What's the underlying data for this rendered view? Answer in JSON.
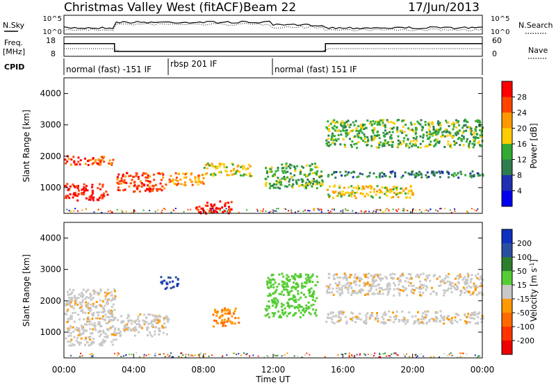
{
  "header": {
    "station": "Christmas Valley West (fitACF)",
    "beam": "Beam 22",
    "date": "17/Jun/2013"
  },
  "side_labels": {
    "nsky": "N.Sky",
    "nsearch": "N.Search",
    "freq": "Freq.",
    "freq_unit": "[MHz]",
    "nave": "Nave",
    "cpid": "CPID"
  },
  "noise_panel": {
    "left_ticks": [
      "10^5",
      "10^0"
    ],
    "right_ticks": [
      "10^5",
      "10^0"
    ]
  },
  "freq_panel": {
    "left_ticks": [
      "18",
      "8"
    ],
    "right_ticks": [
      "60",
      "0"
    ],
    "freq_series": {
      "name": "Freq",
      "x_hours": [
        0,
        2.9,
        2.9,
        15.0,
        15.0,
        24
      ],
      "mhz": [
        14.5,
        14.5,
        10.5,
        10.5,
        14.5,
        14.5
      ]
    }
  },
  "cpid_segments": [
    {
      "label": "normal (fast) -151 IF",
      "start_hour": 0
    },
    {
      "label": "rbsp 201 IF",
      "start_hour": 6.0
    },
    {
      "label": "normal (fast) 151 IF",
      "start_hour": 12.0
    }
  ],
  "xaxis": {
    "label": "Time UT",
    "ticks": [
      "00:00",
      "04:00",
      "08:00",
      "12:00",
      "16:00",
      "20:00",
      "00:00"
    ]
  },
  "range_axis": {
    "label": "Slant Range [km]",
    "ticks": [
      "1000",
      "2000",
      "3000",
      "4000"
    ]
  },
  "power_colorbar": {
    "title": "Power [dB]",
    "labels": [
      "28",
      "24",
      "20",
      "16",
      "12",
      "8",
      "4"
    ],
    "colors": [
      "#ff0000",
      "#ff4400",
      "#ff9900",
      "#ffcc00",
      "#33aa33",
      "#2e7d4f",
      "#2030b0",
      "#0000ee"
    ]
  },
  "velocity_colorbar": {
    "title": "Velocity [m s",
    "title_sup": "-1",
    "title_end": "]",
    "labels": [
      "200",
      "100",
      "50",
      "15",
      "-15",
      "-50",
      "-100",
      "-200"
    ],
    "colors": [
      "#1030c0",
      "#2a4fa0",
      "#2e7d2e",
      "#55cc33",
      "#c8c8c8",
      "#ff9900",
      "#ff6a00",
      "#ff3300",
      "#ee0000"
    ]
  },
  "chart_data": [
    {
      "type": "heatmap",
      "title": "Power",
      "xlabel": "Time UT",
      "ylabel": "Slant Range [km]",
      "xlim_hours": [
        0,
        24
      ],
      "ylim_km": [
        180,
        4500
      ],
      "colorbar_label": "Power [dB]",
      "features": [
        {
          "t": [
            0.0,
            2.8
          ],
          "r": [
            1750,
            2050
          ],
          "db": 24
        },
        {
          "t": [
            0.0,
            2.5
          ],
          "r": [
            620,
            1150
          ],
          "db": 28
        },
        {
          "t": [
            3.0,
            5.8
          ],
          "r": [
            900,
            1500
          ],
          "db": 26
        },
        {
          "t": [
            6.0,
            8.0
          ],
          "r": [
            1100,
            1500
          ],
          "db": 20
        },
        {
          "t": [
            7.5,
            9.6
          ],
          "r": [
            200,
            600
          ],
          "db": 28
        },
        {
          "t": [
            8.0,
            10.7
          ],
          "r": [
            1400,
            1800
          ],
          "db": 18
        },
        {
          "t": [
            11.5,
            14.8
          ],
          "r": [
            1000,
            1800
          ],
          "db": 14
        },
        {
          "t": [
            15.0,
            20.0
          ],
          "r": [
            700,
            1100
          ],
          "db": 18
        },
        {
          "t": [
            15.0,
            24.0
          ],
          "r": [
            2300,
            3200
          ],
          "db": 12
        },
        {
          "t": [
            15.0,
            24.0
          ],
          "r": [
            1350,
            1550
          ],
          "db": 10
        }
      ]
    },
    {
      "type": "heatmap",
      "title": "Velocity",
      "xlabel": "Time UT",
      "ylabel": "Slant Range [km]",
      "xlim_hours": [
        0,
        24
      ],
      "ylim_km": [
        180,
        4500
      ],
      "colorbar_label": "Velocity [m s-1]",
      "features": [
        {
          "t": [
            0.0,
            3.0
          ],
          "r": [
            600,
            2400
          ],
          "v": 0
        },
        {
          "t": [
            3.0,
            6.0
          ],
          "r": [
            900,
            1600
          ],
          "v": 0
        },
        {
          "t": [
            5.5,
            6.5
          ],
          "r": [
            2400,
            2800
          ],
          "v": 120
        },
        {
          "t": [
            8.5,
            10.0
          ],
          "r": [
            1200,
            1800
          ],
          "v": -40
        },
        {
          "t": [
            11.5,
            14.5
          ],
          "r": [
            1500,
            2900
          ],
          "v": 30
        },
        {
          "t": [
            15.0,
            24.0
          ],
          "r": [
            1300,
            1700
          ],
          "v": 0
        },
        {
          "t": [
            15.0,
            24.0
          ],
          "r": [
            2200,
            2900
          ],
          "v": 0
        }
      ]
    }
  ]
}
